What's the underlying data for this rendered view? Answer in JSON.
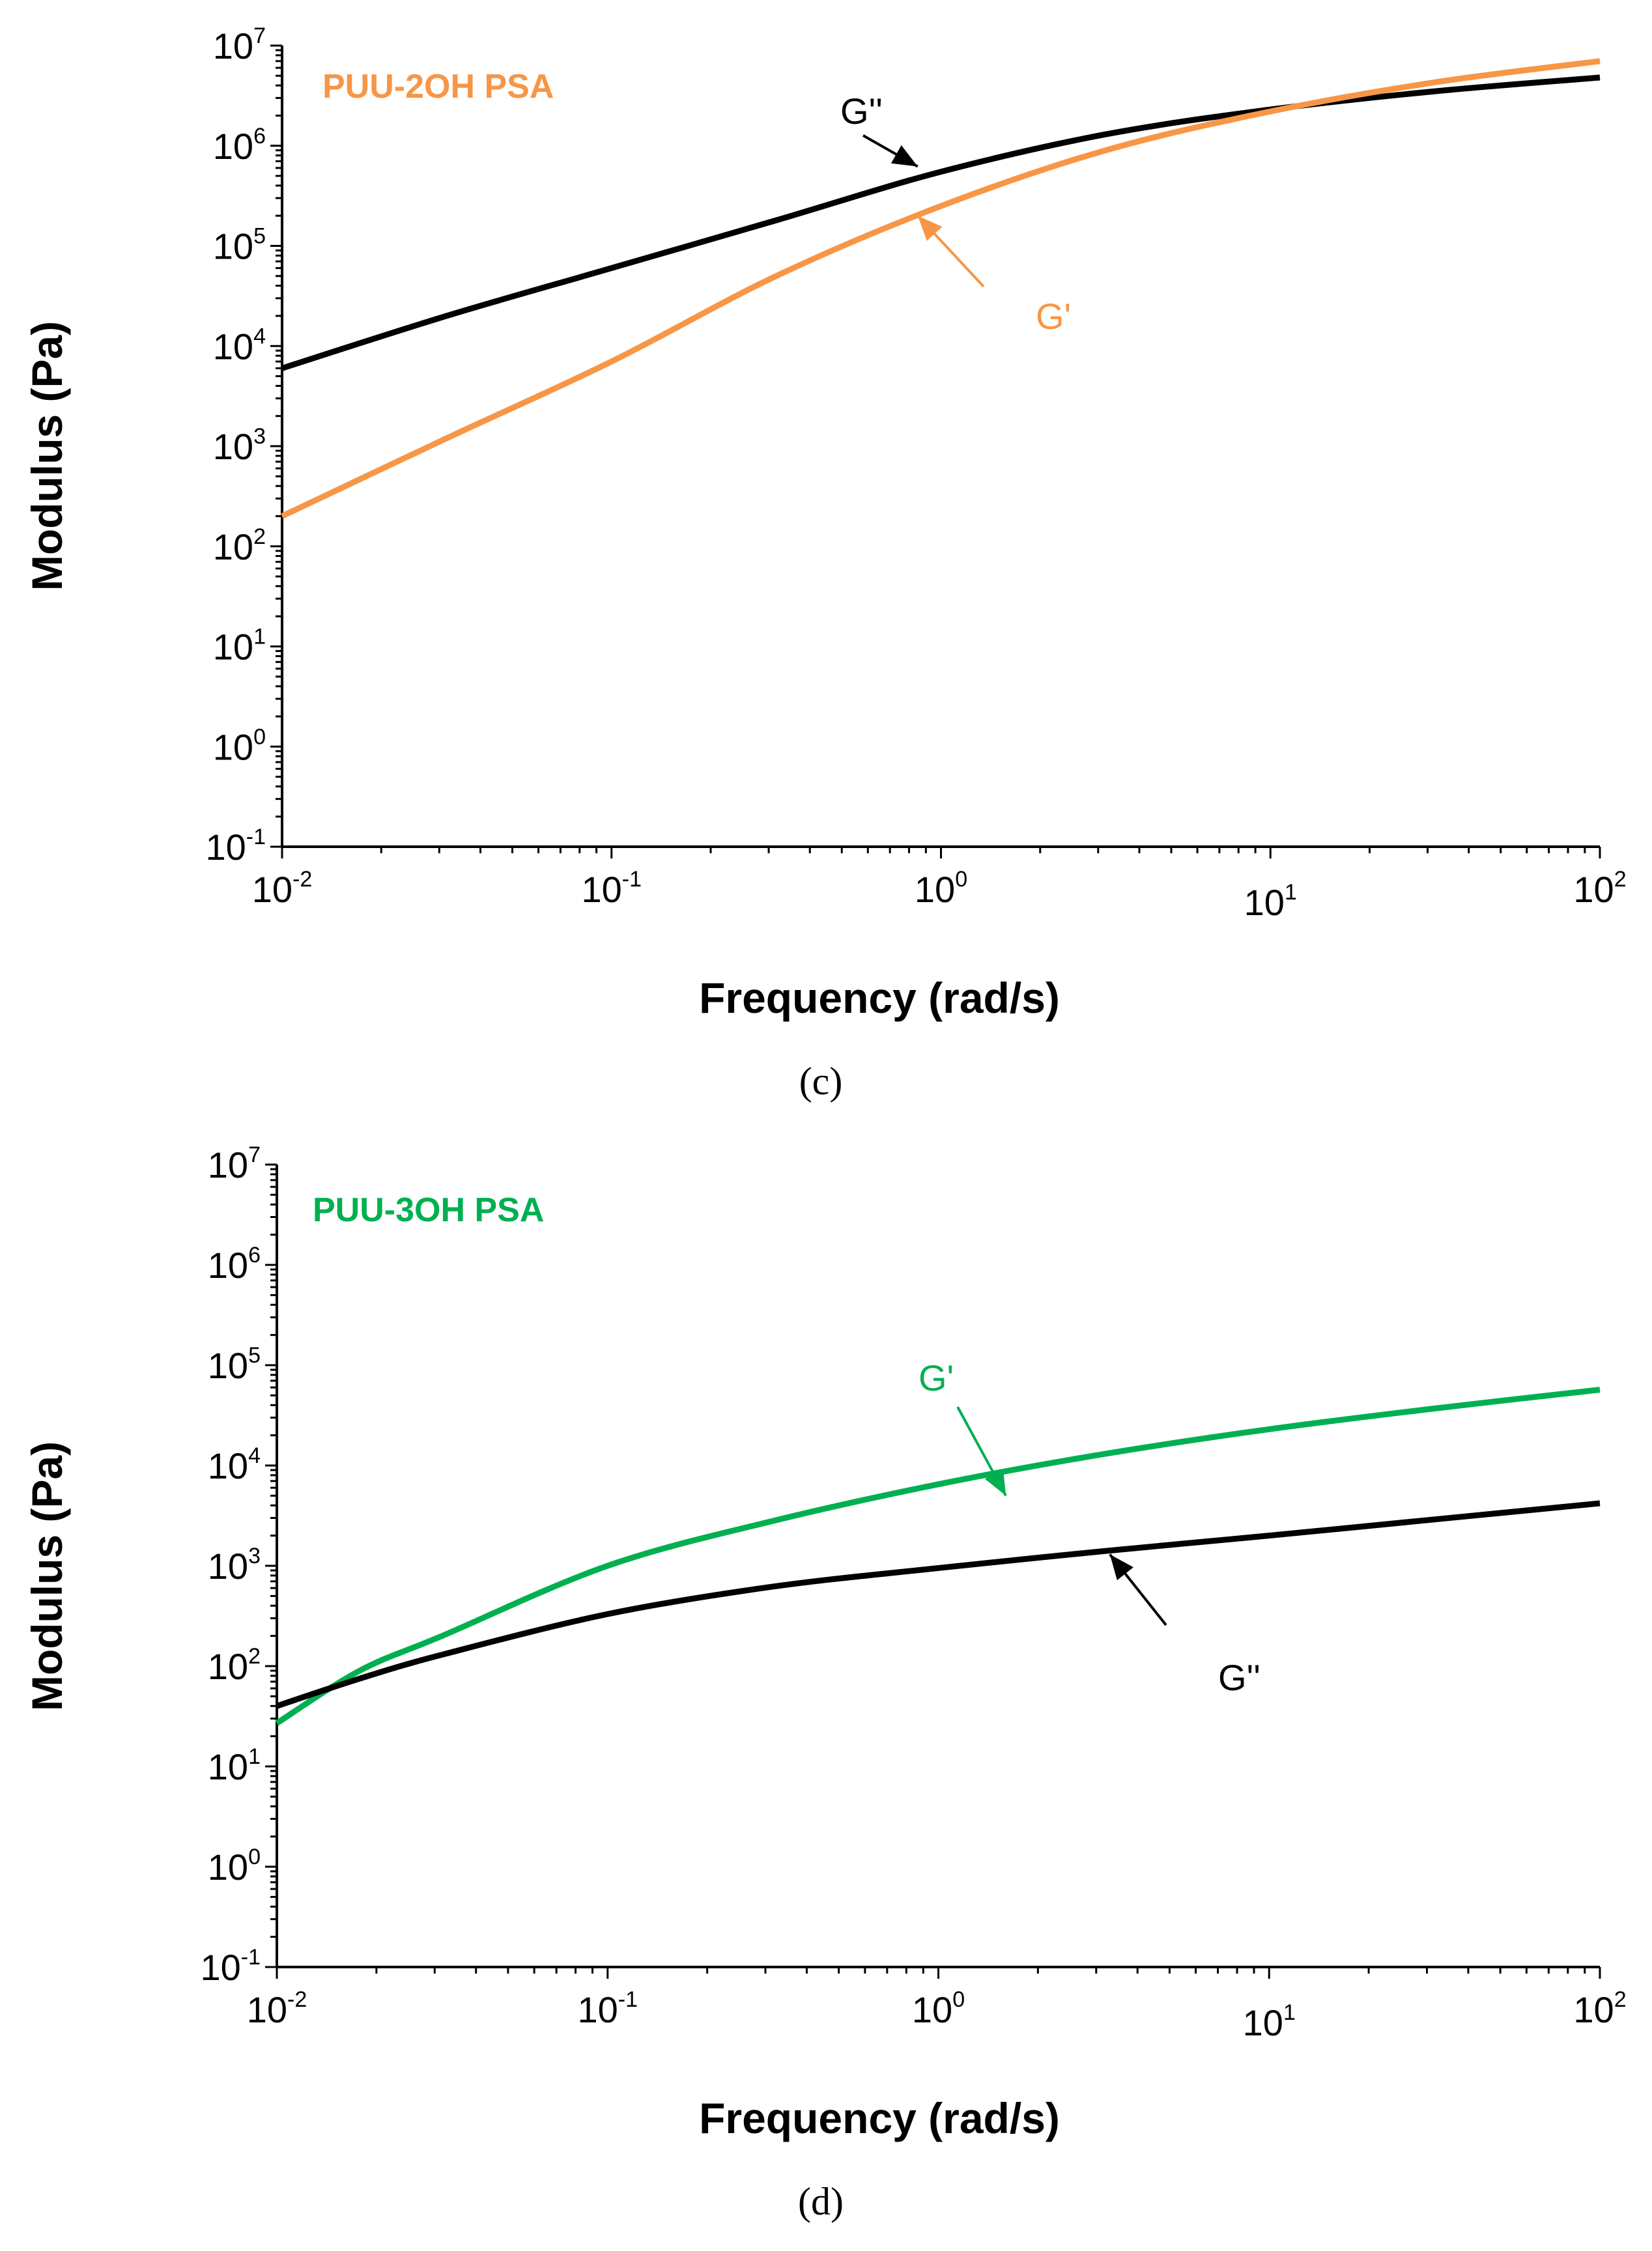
{
  "chart_data": [
    {
      "type": "line",
      "panel_label": "(c)",
      "title": "PUU-2OH PSA",
      "title_color": "#F79646",
      "xlabel": "Frequency (rad/s)",
      "ylabel": "Modulus (Pa)",
      "xscale": "log",
      "yscale": "log",
      "xlim": [
        0.01,
        100
      ],
      "ylim": [
        0.1,
        10000000
      ],
      "x_ticks": [
        {
          "base": "10",
          "exp": "-2"
        },
        {
          "base": "10",
          "exp": "-1"
        },
        {
          "base": "10",
          "exp": "0"
        },
        {
          "base": "10",
          "exp": "1"
        },
        {
          "base": "10",
          "exp": "2"
        }
      ],
      "y_ticks": [
        {
          "base": "10",
          "exp": "-1"
        },
        {
          "base": "10",
          "exp": "0"
        },
        {
          "base": "10",
          "exp": "1"
        },
        {
          "base": "10",
          "exp": "2"
        },
        {
          "base": "10",
          "exp": "3"
        },
        {
          "base": "10",
          "exp": "4"
        },
        {
          "base": "10",
          "exp": "5"
        },
        {
          "base": "10",
          "exp": "6"
        },
        {
          "base": "10",
          "exp": "7"
        }
      ],
      "series": [
        {
          "name": "G''",
          "color": "#000000",
          "x": [
            0.01,
            0.0316,
            0.1,
            0.316,
            1,
            3.16,
            10,
            31.6,
            100
          ],
          "y": [
            6000,
            20000,
            60000,
            180000,
            550000,
            1300000,
            2300000,
            3500000,
            4800000
          ]
        },
        {
          "name": "G'",
          "color": "#F79646",
          "x": [
            0.01,
            0.0316,
            0.1,
            0.316,
            1,
            3.16,
            10,
            31.6,
            100
          ],
          "y": [
            200,
            1200,
            7000,
            50000,
            250000,
            900000,
            2200000,
            4300000,
            7000000
          ]
        }
      ],
      "annotations": [
        {
          "text": "G''",
          "color": "#000000",
          "arrow_to": [
            0.85,
            620000
          ]
        },
        {
          "text": "G'",
          "color": "#F79646",
          "arrow_to": [
            0.85,
            200000
          ]
        }
      ]
    },
    {
      "type": "line",
      "panel_label": "(d)",
      "title": "PUU-3OH PSA",
      "title_color": "#00B050",
      "xlabel": "Frequency (rad/s)",
      "ylabel": "Modulus (Pa)",
      "xscale": "log",
      "yscale": "log",
      "xlim": [
        0.01,
        100
      ],
      "ylim": [
        0.1,
        10000000
      ],
      "x_ticks": [
        {
          "base": "10",
          "exp": "-2"
        },
        {
          "base": "10",
          "exp": "-1"
        },
        {
          "base": "10",
          "exp": "0"
        },
        {
          "base": "10",
          "exp": "1"
        },
        {
          "base": "10",
          "exp": "2"
        }
      ],
      "y_ticks": [
        {
          "base": "10",
          "exp": "-1"
        },
        {
          "base": "10",
          "exp": "0"
        },
        {
          "base": "10",
          "exp": "1"
        },
        {
          "base": "10",
          "exp": "2"
        },
        {
          "base": "10",
          "exp": "3"
        },
        {
          "base": "10",
          "exp": "4"
        },
        {
          "base": "10",
          "exp": "5"
        },
        {
          "base": "10",
          "exp": "6"
        },
        {
          "base": "10",
          "exp": "7"
        }
      ],
      "series": [
        {
          "name": "G'",
          "color": "#00B050",
          "x": [
            0.01,
            0.0178,
            0.0316,
            0.1,
            0.316,
            1,
            3.16,
            10,
            31.6,
            100
          ],
          "y": [
            27,
            90,
            200,
            1000,
            2800,
            6500,
            13000,
            23000,
            37000,
            57000
          ]
        },
        {
          "name": "G''",
          "color": "#000000",
          "x": [
            0.01,
            0.0178,
            0.0316,
            0.1,
            0.316,
            1,
            3.16,
            10,
            31.6,
            100
          ],
          "y": [
            40,
            75,
            130,
            330,
            620,
            950,
            1400,
            2000,
            2900,
            4200
          ]
        }
      ],
      "annotations": [
        {
          "text": "G'",
          "color": "#00B050",
          "arrow_to": [
            1.6,
            5000
          ]
        },
        {
          "text": "G''",
          "color": "#000000",
          "arrow_to": [
            3.3,
            1300
          ]
        }
      ]
    }
  ]
}
